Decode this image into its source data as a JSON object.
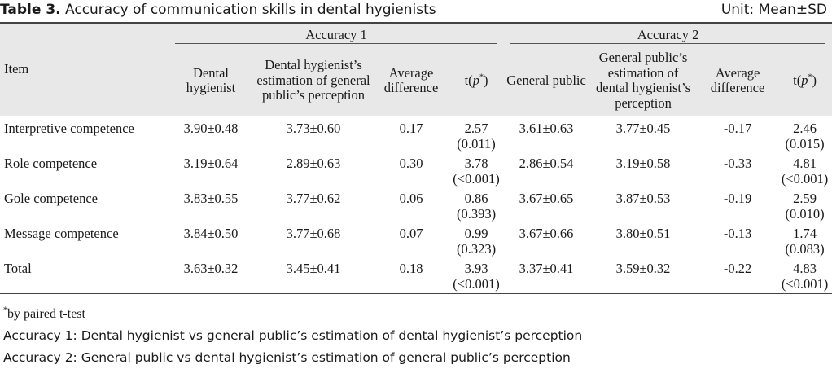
{
  "caption": {
    "label": "Table 3.",
    "text": " Accuracy of communication skills in dental hygienists",
    "unit": "Unit: Mean±SD"
  },
  "header": {
    "item": "Item",
    "group1": "Accuracy 1",
    "group2": "Accuracy 2",
    "columns": {
      "c1": "Dental hygienist",
      "c2": "Dental hygienist’s estimation of general public’s perception",
      "c3": "Average difference",
      "c4_prefix": "t(",
      "c4_p": "p",
      "c4_sup": "*",
      "c4_suffix": ")",
      "c5": "General public",
      "c6": "General public’s estimation of dental hygienist’s perception",
      "c7": "Average difference",
      "c8_prefix": "t(",
      "c8_p": "p",
      "c8_sup": "*",
      "c8_suffix": ")"
    }
  },
  "rows": [
    {
      "item": "Interpretive competence",
      "dh": "3.90±0.48",
      "dh_est": "3.73±0.60",
      "diff1": "0.17",
      "t1": "2.57",
      "p1": "(0.011)",
      "gp": "3.61±0.63",
      "gp_est": "3.77±0.45",
      "diff2": "-0.17",
      "t2": "2.46",
      "p2": "(0.015)"
    },
    {
      "item": "Role competence",
      "dh": "3.19±0.64",
      "dh_est": "2.89±0.63",
      "diff1": "0.30",
      "t1": "3.78",
      "p1": "(<0.001)",
      "gp": "2.86±0.54",
      "gp_est": "3.19±0.58",
      "diff2": "-0.33",
      "t2": "4.81",
      "p2": "(<0.001)"
    },
    {
      "item": "Gole competence",
      "dh": "3.83±0.55",
      "dh_est": "3.77±0.62",
      "diff1": "0.06",
      "t1": "0.86",
      "p1": "(0.393)",
      "gp": "3.67±0.65",
      "gp_est": "3.87±0.53",
      "diff2": "-0.19",
      "t2": "2.59",
      "p2": "(0.010)"
    },
    {
      "item": "Message competence",
      "dh": "3.84±0.50",
      "dh_est": "3.77±0.68",
      "diff1": "0.07",
      "t1": "0.99",
      "p1": "(0.323)",
      "gp": "3.67±0.66",
      "gp_est": "3.80±0.51",
      "diff2": "-0.13",
      "t2": "1.74",
      "p2": "(0.083)"
    },
    {
      "item": "Total",
      "dh": "3.63±0.32",
      "dh_est": "3.45±0.41",
      "diff1": "0.18",
      "t1": "3.93",
      "p1": "(<0.001)",
      "gp": "3.37±0.41",
      "gp_est": "3.59±0.32",
      "diff2": "-0.22",
      "t2": "4.83",
      "p2": "(<0.001)"
    }
  ],
  "notes": {
    "footnote_sup": "*",
    "footnote": "by paired t-test",
    "acc1": "Accuracy 1: Dental hygienist vs general public’s estimation of dental hygienist’s perception",
    "acc2": "Accuracy 2: General public vs dental hygienist’s estimation of general public’s perception"
  }
}
